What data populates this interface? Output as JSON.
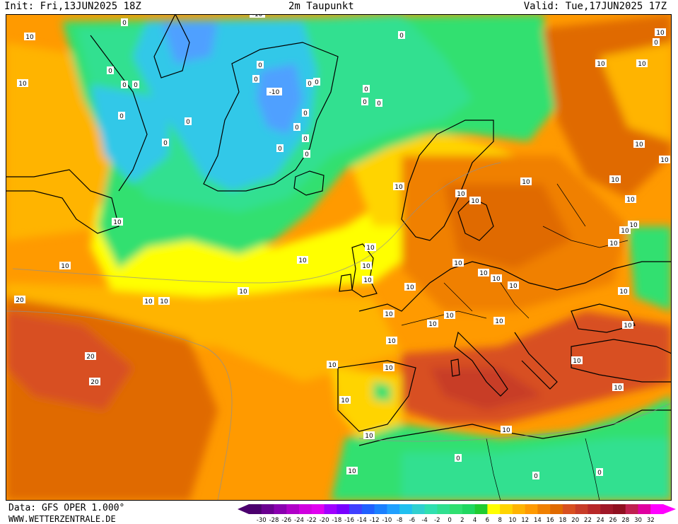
{
  "header": {
    "init": "Init: Fri,13JUN2025 18Z",
    "title": "2m Taupunkt",
    "valid": "Valid: Tue,17JUN2025 17Z"
  },
  "footer": {
    "data_source": "Data: GFS OPER 1.000°",
    "website": "WWW.WETTERZENTRALE.DE"
  },
  "legend": {
    "ticks": [
      "-30",
      "-28",
      "-26",
      "-24",
      "-22",
      "-20",
      "-18",
      "-16",
      "-14",
      "-12",
      "-10",
      "-8",
      "-6",
      "-4",
      "-2",
      "0",
      "2",
      "4",
      "6",
      "8",
      "10",
      "12",
      "14",
      "16",
      "18",
      "20",
      "22",
      "24",
      "26",
      "28",
      "30",
      "32"
    ],
    "colors": [
      "#4b006e",
      "#6a0090",
      "#8a00b0",
      "#b000c8",
      "#d000e0",
      "#e000f0",
      "#a000ff",
      "#7800ff",
      "#4040ff",
      "#2060ff",
      "#1a80ff",
      "#20a0ff",
      "#20c0f0",
      "#30d0d0",
      "#30e0b0",
      "#30e090",
      "#30e070",
      "#20d860",
      "#20cc30",
      "#ffff00",
      "#ffd400",
      "#ffb400",
      "#ff9a00",
      "#f08000",
      "#e06a00",
      "#d85020",
      "#c83c28",
      "#b82828",
      "#a01828",
      "#901020",
      "#c02050",
      "#e000a0",
      "#ff00ff"
    ]
  },
  "contour_labels": [
    "10",
    "0",
    "-10",
    "10",
    "0",
    "0",
    "0",
    "0",
    "0",
    "0",
    "0",
    "0",
    "-10",
    "0",
    "0",
    "0",
    "0",
    "0",
    "0",
    "0",
    "0",
    "0",
    "0",
    "0",
    "10",
    "10",
    "10",
    "10",
    "10",
    "10",
    "10",
    "10",
    "10",
    "10",
    "10",
    "10",
    "10",
    "10",
    "10",
    "10",
    "10",
    "10",
    "10",
    "10",
    "10",
    "10",
    "10",
    "10",
    "10",
    "10",
    "10",
    "20",
    "20",
    "20",
    "10",
    "10",
    "10",
    "10",
    "10",
    "10",
    "10",
    "10",
    "10",
    "10",
    "10",
    "10",
    "0",
    "0",
    "0",
    "0",
    "10",
    "10",
    "10",
    "10"
  ],
  "map_palette": {
    "greenland_core": "#4fa0ff",
    "cold_cyan": "#30c8e8",
    "cool_green": "#30e090",
    "green": "#20d860",
    "yellow": "#ffff00",
    "gold": "#ffd400",
    "orange": "#ff9a00",
    "dark_orange": "#e06a00",
    "red_orange": "#d85020",
    "coast": "#000000"
  }
}
